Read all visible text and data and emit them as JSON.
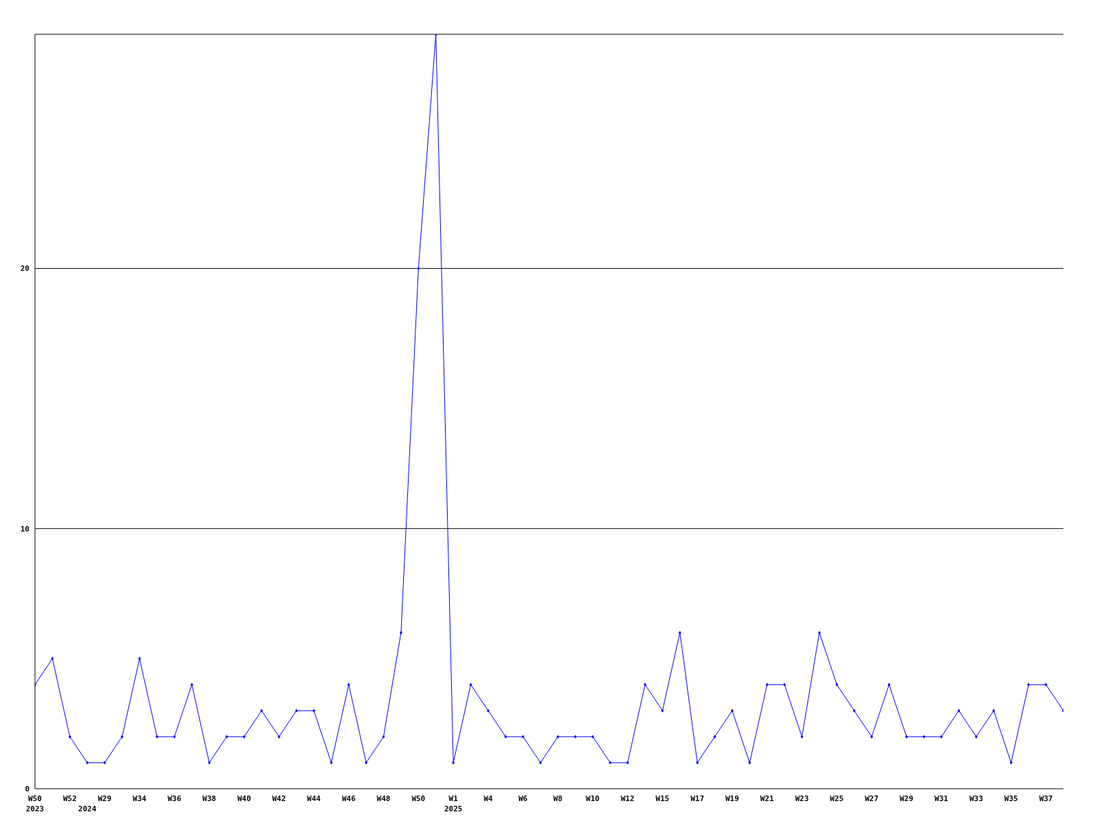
{
  "chart_data": {
    "type": "line",
    "categories": [
      "W50\n2023",
      null,
      "W52",
      "\n2024",
      "W29",
      null,
      "W34",
      null,
      "W36",
      null,
      "W38",
      null,
      "W40",
      null,
      "W42",
      null,
      "W44",
      null,
      "W46",
      null,
      "W48",
      null,
      "W50",
      null,
      "W1\n2025",
      null,
      "W4",
      null,
      "W6",
      null,
      "W8",
      null,
      "W10",
      null,
      "W12",
      null,
      "W15",
      null,
      "W17",
      null,
      "W19",
      null,
      "W21",
      null,
      "W23",
      null,
      "W25",
      null,
      "W27",
      null,
      "W29",
      null,
      "W31",
      null,
      "W33",
      null,
      "W35",
      null,
      "W37",
      null
    ],
    "series": [
      {
        "color": "#0000ff",
        "values": [
          4,
          5,
          2,
          1,
          1,
          2,
          5,
          2,
          2,
          4,
          1,
          2,
          2,
          3,
          2,
          3,
          3,
          1,
          4,
          1,
          2,
          6,
          20,
          29,
          1,
          4,
          3,
          2,
          2,
          1,
          2,
          2,
          2,
          1,
          1,
          4,
          3,
          6,
          1,
          2,
          3,
          1,
          4,
          4,
          2,
          6,
          4,
          3,
          2,
          4,
          2,
          2,
          2,
          3,
          2,
          3,
          1,
          4,
          4,
          3
        ]
      }
    ],
    "ylim": [
      0,
      29
    ],
    "yticks": [
      0,
      10,
      20
    ],
    "grid": "y",
    "marker": "diamond",
    "line_style": "solid"
  }
}
